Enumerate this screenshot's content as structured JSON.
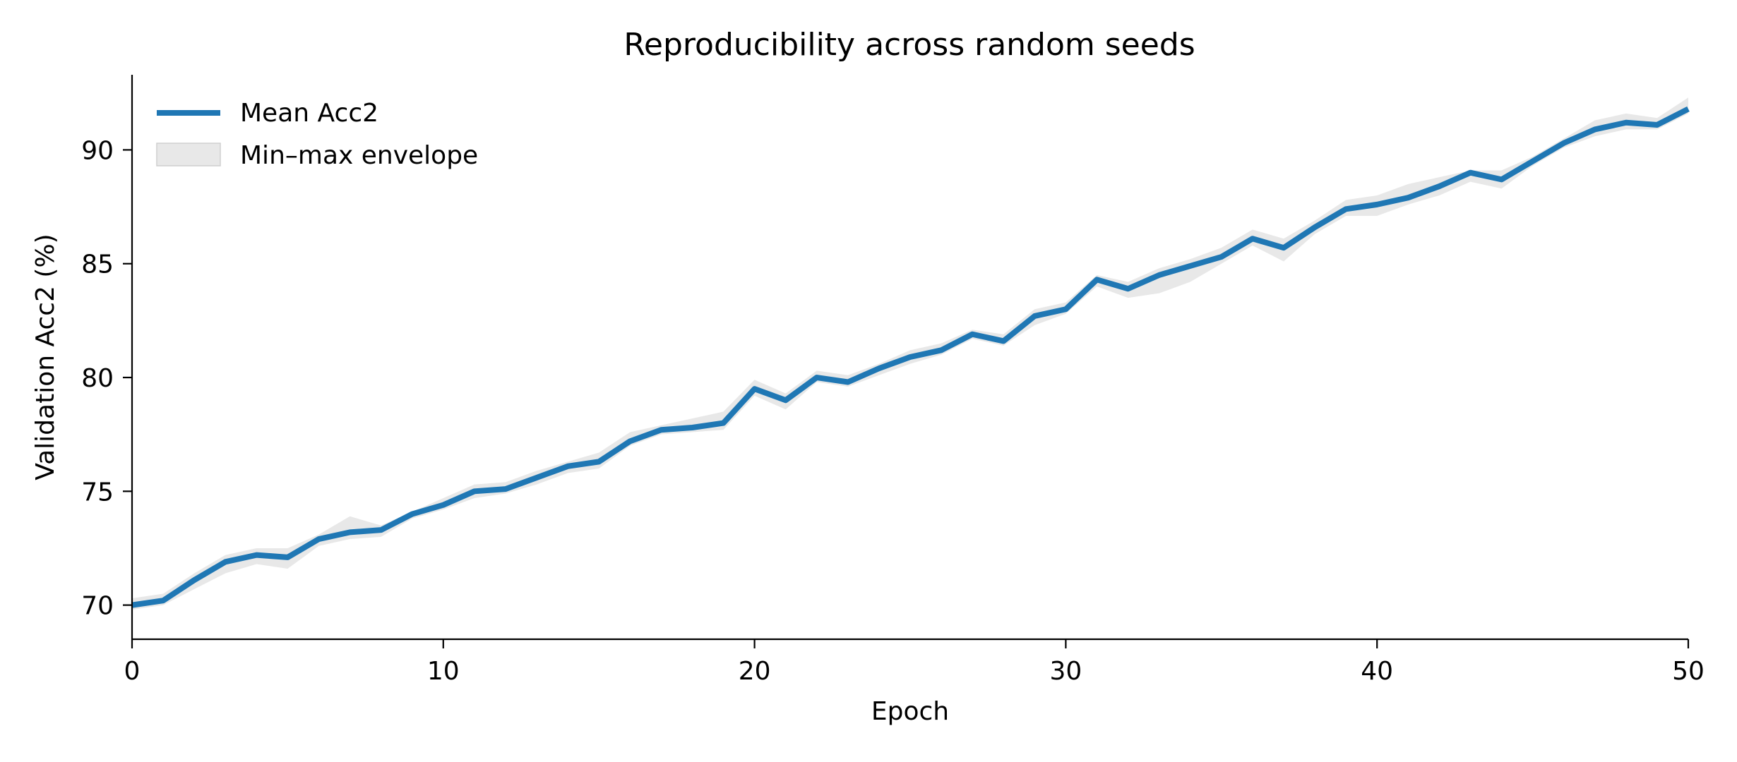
{
  "chart_data": {
    "type": "line",
    "title": "Reproducibility across random seeds",
    "xlabel": "Epoch",
    "ylabel": "Validation Acc2 (%)",
    "xlim": [
      0,
      50
    ],
    "ylim": [
      68.5,
      93.3
    ],
    "xticks": [
      0,
      10,
      20,
      30,
      40,
      50
    ],
    "yticks": [
      70,
      75,
      80,
      85,
      90
    ],
    "grid": false,
    "legend_position": "top-left",
    "x": [
      0,
      1,
      2,
      3,
      4,
      5,
      6,
      7,
      8,
      9,
      10,
      11,
      12,
      13,
      14,
      15,
      16,
      17,
      18,
      19,
      20,
      21,
      22,
      23,
      24,
      25,
      26,
      27,
      28,
      29,
      30,
      31,
      32,
      33,
      34,
      35,
      36,
      37,
      38,
      39,
      40,
      41,
      42,
      43,
      44,
      45,
      46,
      47,
      48,
      49,
      50
    ],
    "series": [
      {
        "name": "Mean Acc2",
        "kind": "line",
        "color": "#1f77b4",
        "values": [
          70.0,
          70.2,
          71.1,
          71.9,
          72.2,
          72.1,
          72.9,
          73.2,
          73.3,
          74.0,
          74.4,
          75.0,
          75.1,
          75.6,
          76.1,
          76.3,
          77.2,
          77.7,
          77.8,
          78.0,
          79.5,
          79.0,
          80.0,
          79.8,
          80.4,
          80.9,
          81.2,
          81.9,
          81.6,
          82.7,
          83.0,
          84.3,
          83.9,
          84.5,
          84.9,
          85.3,
          86.1,
          85.7,
          86.6,
          87.4,
          87.6,
          87.9,
          88.4,
          89.0,
          88.7,
          89.5,
          90.3,
          90.9,
          91.2,
          91.1,
          91.8
        ]
      },
      {
        "name": "Min–max envelope",
        "kind": "band",
        "color": "#d9d9d9",
        "min": [
          69.8,
          70.0,
          70.7,
          71.4,
          71.8,
          71.6,
          72.6,
          72.9,
          73.0,
          73.8,
          74.2,
          74.7,
          74.9,
          75.3,
          75.8,
          76.0,
          77.0,
          77.5,
          77.6,
          77.7,
          79.2,
          78.6,
          79.8,
          79.6,
          80.1,
          80.6,
          81.0,
          81.7,
          81.4,
          82.3,
          82.8,
          84.0,
          83.5,
          83.7,
          84.2,
          85.0,
          85.8,
          85.1,
          86.3,
          87.1,
          87.1,
          87.6,
          88.0,
          88.6,
          88.3,
          89.3,
          90.1,
          90.6,
          90.9,
          90.9,
          91.6
        ],
        "max": [
          70.3,
          70.5,
          71.4,
          72.2,
          72.5,
          72.5,
          73.1,
          73.9,
          73.5,
          74.1,
          74.7,
          75.3,
          75.4,
          75.9,
          76.3,
          76.7,
          77.6,
          77.9,
          78.2,
          78.5,
          79.9,
          79.3,
          80.3,
          80.1,
          80.6,
          81.2,
          81.5,
          82.1,
          81.9,
          83.0,
          83.3,
          84.5,
          84.2,
          84.8,
          85.2,
          85.7,
          86.5,
          86.1,
          86.9,
          87.8,
          88.0,
          88.5,
          88.8,
          89.1,
          89.1,
          89.7,
          90.5,
          91.3,
          91.6,
          91.4,
          92.3
        ]
      }
    ]
  }
}
